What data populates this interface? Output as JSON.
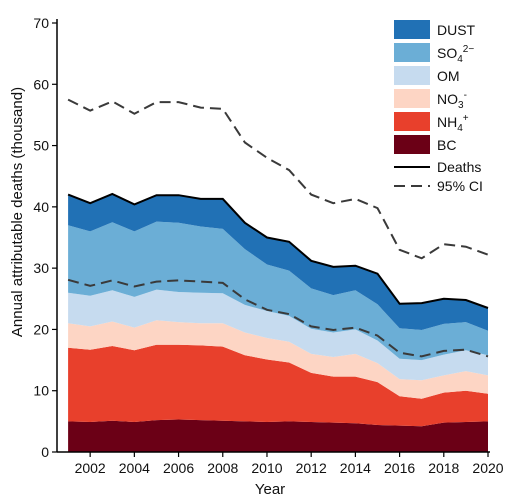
{
  "chart_data": {
    "type": "area",
    "stacked": true,
    "xlabel": "Year",
    "ylabel": "Annual attributable deaths (thousand)",
    "xlim": [
      2000.5,
      2020
    ],
    "ylim": [
      0,
      70
    ],
    "yticks": [
      0,
      10,
      20,
      30,
      40,
      50,
      60,
      70
    ],
    "xticks": [
      2002,
      2004,
      2006,
      2008,
      2010,
      2012,
      2014,
      2016,
      2018,
      2020
    ],
    "x": [
      2001,
      2002,
      2003,
      2004,
      2005,
      2006,
      2007,
      2008,
      2009,
      2010,
      2011,
      2012,
      2013,
      2014,
      2015,
      2016,
      2017,
      2018,
      2019,
      2020
    ],
    "series": [
      {
        "name": "BC",
        "label_main": "BC",
        "label_sup": "",
        "color": "#6b0016",
        "values": [
          5.0,
          4.9,
          5.1,
          4.9,
          5.2,
          5.3,
          5.2,
          5.1,
          5.0,
          4.9,
          5.0,
          4.9,
          4.8,
          4.7,
          4.4,
          4.3,
          4.2,
          4.8,
          4.9,
          5.0
        ]
      },
      {
        "name": "NH4+",
        "label_main": "NH",
        "label_sub": "4",
        "label_sup": "+",
        "color": "#e8402c",
        "values": [
          12.0,
          11.8,
          12.2,
          11.7,
          12.3,
          12.2,
          12.2,
          12.1,
          10.8,
          10.2,
          9.6,
          8.0,
          7.5,
          7.6,
          7.0,
          4.8,
          4.5,
          4.9,
          5.1,
          4.5
        ]
      },
      {
        "name": "NO3-",
        "label_main": "NO",
        "label_sub": "3",
        "label_sup": "-",
        "color": "#fdd5c4",
        "values": [
          4.0,
          3.8,
          4.0,
          3.7,
          4.0,
          3.7,
          3.6,
          3.8,
          3.7,
          3.5,
          3.4,
          3.1,
          3.2,
          3.7,
          3.1,
          2.8,
          3.0,
          2.8,
          3.2,
          3.0
        ]
      },
      {
        "name": "OM",
        "label_main": "OM",
        "label_sup": "",
        "color": "#c6dbef",
        "values": [
          5.0,
          5.0,
          5.1,
          5.0,
          5.0,
          4.9,
          5.0,
          4.9,
          4.5,
          4.4,
          4.2,
          4.1,
          4.0,
          4.0,
          3.7,
          3.3,
          3.3,
          3.4,
          3.4,
          3.3
        ]
      },
      {
        "name": "SO42-",
        "label_main": "SO",
        "label_sub": "4",
        "label_sup": "2−",
        "color": "#6baed6",
        "values": [
          11.0,
          10.5,
          11.1,
          10.7,
          11.1,
          11.3,
          10.8,
          10.5,
          9.1,
          7.6,
          7.4,
          6.6,
          6.1,
          6.4,
          5.9,
          5.0,
          4.9,
          5.0,
          4.6,
          4.0
        ]
      },
      {
        "name": "DUST",
        "label_main": "DUST",
        "label_sup": "",
        "color": "#2171b5",
        "values": [
          5.0,
          4.6,
          4.6,
          4.4,
          4.3,
          4.5,
          4.5,
          4.9,
          4.3,
          4.4,
          4.7,
          4.5,
          4.6,
          4.0,
          5.0,
          4.0,
          4.4,
          4.1,
          3.6,
          3.7
        ]
      }
    ],
    "deaths": {
      "name": "Deaths",
      "values": [
        42.0,
        40.6,
        42.1,
        40.4,
        41.9,
        41.9,
        41.3,
        41.3,
        37.4,
        35.0,
        34.3,
        31.2,
        30.2,
        30.4,
        29.1,
        24.2,
        24.3,
        25.0,
        24.8,
        23.5
      ]
    },
    "ci_label": "95% CI",
    "ci_upper": [
      57.5,
      55.7,
      57.2,
      55.2,
      57.1,
      57.1,
      56.2,
      56.0,
      50.5,
      48.0,
      46.0,
      42.0,
      40.6,
      41.3,
      39.8,
      33.0,
      31.6,
      33.9,
      33.5,
      32.2
    ],
    "ci_lower": [
      28.1,
      27.1,
      28.0,
      27.0,
      27.8,
      28.0,
      27.8,
      27.6,
      24.9,
      23.2,
      22.5,
      20.5,
      19.9,
      20.3,
      19.0,
      16.2,
      15.6,
      16.5,
      16.7,
      15.6
    ],
    "legend_position": "top-right"
  }
}
